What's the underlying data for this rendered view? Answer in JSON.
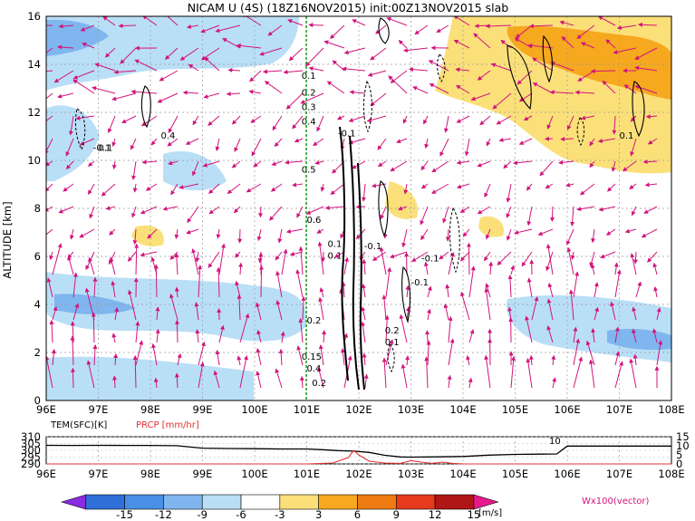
{
  "chart_data": [
    {
      "type": "contour-crosssection",
      "title": "NICAM U (4S) (18Z16NOV2015) init:00Z13NOV2015 slab",
      "ylabel": "ALTITUDE [km]",
      "xlabel": "",
      "x_ticks": [
        "96E",
        "97E",
        "98E",
        "99E",
        "100E",
        "101E",
        "102E",
        "103E",
        "104E",
        "105E",
        "106E",
        "107E",
        "108E"
      ],
      "y_ticks": [
        "0",
        "2",
        "4",
        "6",
        "8",
        "10",
        "12",
        "14",
        "16"
      ],
      "xlim": [
        96,
        108
      ],
      "ylim": [
        0,
        16
      ],
      "reference_line_lon": 101,
      "contour_labels": [
        {
          "text": "0.1",
          "x": 97.0,
          "y": 10.4
        },
        {
          "text": "-0.1",
          "x": 96.9,
          "y": 10.4
        },
        {
          "text": "0.4",
          "x": 98.2,
          "y": 10.9
        },
        {
          "text": "0.1",
          "x": 100.9,
          "y": 13.4
        },
        {
          "text": "0.2",
          "x": 100.9,
          "y": 12.7
        },
        {
          "text": "0.3",
          "x": 100.9,
          "y": 12.1
        },
        {
          "text": "0.4",
          "x": 100.9,
          "y": 11.5
        },
        {
          "text": "-0.1",
          "x": 101.6,
          "y": 11.0
        },
        {
          "text": "0.5",
          "x": 100.9,
          "y": 9.5
        },
        {
          "text": "0.6",
          "x": 101.0,
          "y": 7.4
        },
        {
          "text": "0.1",
          "x": 101.4,
          "y": 6.4
        },
        {
          "text": "-0.1",
          "x": 102.1,
          "y": 6.3
        },
        {
          "text": "0.1",
          "x": 101.4,
          "y": 5.9
        },
        {
          "text": "-0.1",
          "x": 103.2,
          "y": 5.8
        },
        {
          "text": "-0.1",
          "x": 103.0,
          "y": 4.8
        },
        {
          "text": "0.2",
          "x": 101.0,
          "y": 3.2
        },
        {
          "text": "0.2",
          "x": 102.5,
          "y": 2.8
        },
        {
          "text": "0.1",
          "x": 102.5,
          "y": 2.3
        },
        {
          "text": "0.15",
          "x": 100.9,
          "y": 1.7
        },
        {
          "text": "0.4",
          "x": 101.0,
          "y": 1.2
        },
        {
          "text": "0.2",
          "x": 101.1,
          "y": 0.6
        },
        {
          "text": "0.1",
          "x": 107.0,
          "y": 10.9
        }
      ],
      "colorbar": {
        "ticks": [
          "-15",
          "-12",
          "-9",
          "-6",
          "-3",
          "3",
          "6",
          "9",
          "12",
          "15"
        ],
        "unit": "[m/s]",
        "colors": [
          "#8a2be2",
          "#2f6fd8",
          "#4a8ee6",
          "#7fb6ef",
          "#b9dff6",
          "#ffffff",
          "#fbe07a",
          "#f6a81f",
          "#ee7a12",
          "#e53a1c",
          "#b01616",
          "#e8198c"
        ]
      },
      "vector_label": "Wx100(vector)",
      "vector_color": "#d2147d"
    },
    {
      "type": "line",
      "title": "",
      "x_ticks": [
        "96E",
        "97E",
        "98E",
        "99E",
        "100E",
        "101E",
        "102E",
        "103E",
        "104E",
        "105E",
        "106E",
        "107E",
        "108E"
      ],
      "y_ticks_left": [
        "290",
        "295",
        "300",
        "305",
        "310"
      ],
      "y_ticks_right": [
        "0",
        "5",
        "10",
        "15"
      ],
      "series": [
        {
          "name": "TEM(SFC)[K]",
          "color": "#000000",
          "x": [
            96,
            96.5,
            97,
            97.5,
            98,
            98.5,
            99,
            99.5,
            100,
            100.5,
            101,
            101.3,
            101.6,
            101.9,
            102.2,
            102.5,
            102.8,
            103,
            103.5,
            104,
            104.5,
            105,
            105.5,
            105.8,
            106,
            106.5,
            107,
            107.5,
            108
          ],
          "y": [
            303.7,
            303.6,
            303.7,
            303.6,
            303.6,
            303.4,
            301.6,
            301.3,
            301.2,
            301.0,
            301.0,
            300.5,
            299.8,
            299.4,
            298.5,
            296.3,
            295.1,
            295.0,
            295.2,
            295.5,
            296.5,
            297.0,
            297.2,
            297.3,
            303.1,
            303.1,
            303.1,
            303.1,
            303.1
          ]
        },
        {
          "name": "PRCP [mm/hr]",
          "color": "#e53030",
          "x": [
            96,
            97,
            97.5,
            98,
            99,
            100,
            101,
            101.5,
            101.8,
            101.9,
            102.0,
            102.2,
            102.5,
            102.8,
            103.0,
            103.2,
            103.4,
            103.6,
            103.8,
            104,
            105,
            106,
            107,
            108
          ],
          "y": [
            0,
            0,
            0,
            0,
            0,
            0,
            0,
            0.5,
            3.5,
            7.5,
            5.0,
            1.5,
            0.5,
            0.3,
            1.8,
            1.0,
            0.3,
            1.0,
            0.3,
            0,
            0,
            0,
            0,
            0
          ]
        }
      ],
      "annotation": "10",
      "xlim": [
        96,
        108
      ],
      "ylim_left": [
        290,
        310
      ],
      "ylim_right": [
        0,
        15
      ]
    }
  ]
}
